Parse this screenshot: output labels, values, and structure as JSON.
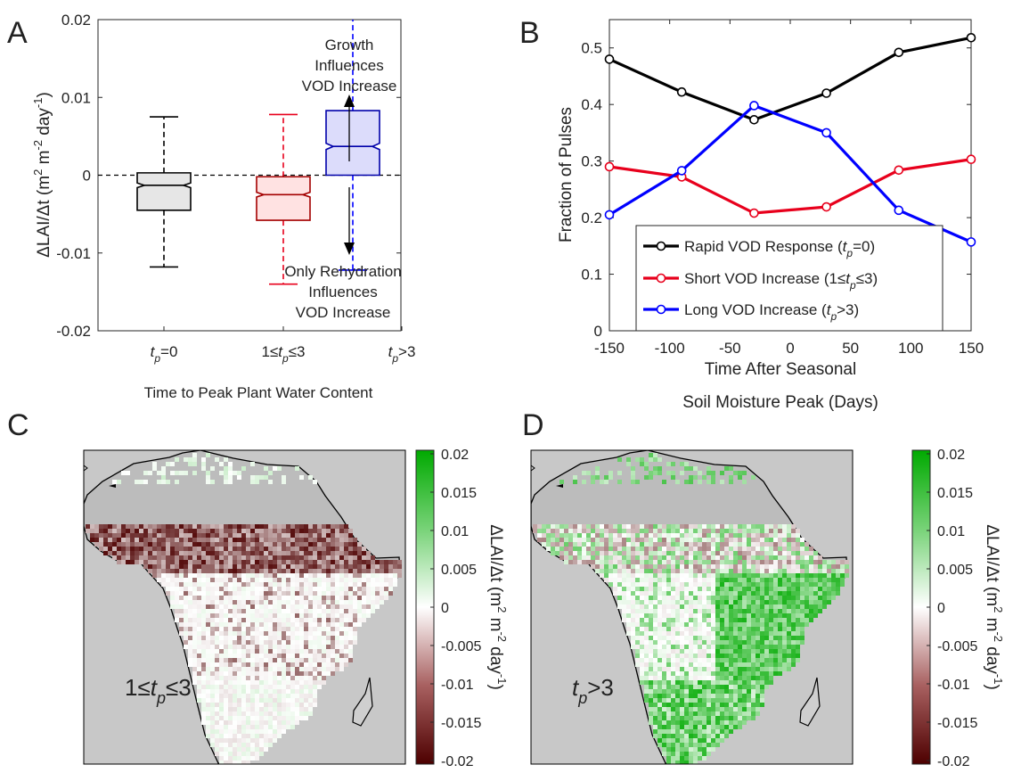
{
  "panels": {
    "A": {
      "letter": "A"
    },
    "B": {
      "letter": "B"
    },
    "C": {
      "letter": "C"
    },
    "D": {
      "letter": "D"
    }
  },
  "colors": {
    "black": "#000000",
    "red": "#e8001c",
    "blue": "#0000ff",
    "box_gray_fill": "#e6e6e6",
    "box_red_fill": "#ffe2e2",
    "box_red_edge": "#a40000",
    "box_blue_fill": "#dcdcfb",
    "box_blue_edge": "#0000aa",
    "ocean": "#c8c8c8",
    "cmap_low": "#4d0000",
    "cmap_mid": "#ffffff",
    "cmap_high": "#00aa00"
  },
  "chart_data": [
    {
      "panel": "A",
      "type": "box",
      "categories_text": {
        "c1_a": "t",
        "c1_sub": "p",
        "c1_b": "=0",
        "c2_a": "1≤",
        "c2_t": "t",
        "c2_sub": "p",
        "c2_b": "≤3",
        "c3_a": "t",
        "c3_sub": "p",
        "c3_b": ">3"
      },
      "xlabel": "Time to Peak Plant Water Content",
      "ylabel": {
        "main": "ΔLAI/Δt (m",
        "sup1": "2",
        "mid1": " m",
        "sup2": "-2",
        "mid2": " day",
        "sup3": "-1",
        "end": ")"
      },
      "ylim": [
        -0.02,
        0.02
      ],
      "yticks": [
        -0.02,
        -0.01,
        0,
        0.01,
        0.02
      ],
      "ytick_labels": [
        "-0.02",
        "-0.01",
        "0",
        "0.01",
        "0.02"
      ],
      "reference_line": 0,
      "boxes": [
        {
          "whisker_low": -0.0118,
          "q1": -0.0045,
          "median": -0.0013,
          "q3": 0.0003,
          "whisker_high": 0.0075,
          "notch": 0.0003
        },
        {
          "whisker_low": -0.014,
          "q1": -0.0058,
          "median": -0.0025,
          "q3": -0.0002,
          "whisker_high": 0.0078,
          "notch": 0.0003
        },
        {
          "whisker_low": -0.0122,
          "q1": 0.0,
          "median": 0.0037,
          "q3": 0.0083,
          "whisker_high": 0.02,
          "notch": 0.0004
        }
      ],
      "annotation_up": [
        "Growth",
        "Influences",
        "VOD Increase"
      ],
      "annotation_down": [
        "Only Rehydration",
        "Influences",
        "VOD Increase"
      ]
    },
    {
      "panel": "B",
      "type": "line",
      "x": [
        -150,
        -90,
        -30,
        30,
        90,
        150
      ],
      "xlabel": [
        "Time After Seasonal",
        "Soil Moisture Peak (Days)"
      ],
      "ylabel": "Fraction of Pulses",
      "xlim": [
        -150,
        150
      ],
      "ylim": [
        0,
        0.55
      ],
      "xticks": [
        -150,
        -100,
        -50,
        0,
        50,
        100,
        150
      ],
      "xtick_labels": [
        "-150",
        "-100",
        "-50",
        "0",
        "50",
        "100",
        "150"
      ],
      "yticks": [
        0,
        0.1,
        0.2,
        0.3,
        0.4,
        0.5
      ],
      "ytick_labels": [
        "0",
        "0.1",
        "0.2",
        "0.3",
        "0.4",
        "0.5"
      ],
      "series": [
        {
          "values": [
            0.48,
            0.422,
            0.373,
            0.42,
            0.492,
            0.518
          ],
          "legend": {
            "pre": "Rapid VOD Response (",
            "t": "t",
            "sub": "p",
            "post": "=0)"
          }
        },
        {
          "values": [
            0.29,
            0.272,
            0.208,
            0.219,
            0.284,
            0.303
          ],
          "legend": {
            "pre": "Short VOD Increase (1≤",
            "t": "t",
            "sub": "p",
            "post": "≤3)"
          }
        },
        {
          "values": [
            0.205,
            0.283,
            0.398,
            0.35,
            0.213,
            0.157
          ],
          "legend": {
            "pre": "Long VOD Increase (",
            "t": "t",
            "sub": "p",
            "post": ">3)"
          }
        }
      ],
      "legend_position": "lower-center"
    },
    {
      "panel": "C",
      "type": "heatmap",
      "map_label": {
        "pre": "1≤",
        "t": "t",
        "sub": "p",
        "post": "≤3"
      },
      "clim": [
        -0.02,
        0.02
      ],
      "colorbar_ticks": [
        "0.02",
        "0.015",
        "0.01",
        "0.005",
        "0",
        "-0.005",
        "-0.01",
        "-0.015",
        "-0.02"
      ],
      "colorbar_label": {
        "main": "ΔLAI/Δt (m",
        "sup1": "2",
        "mid1": " m",
        "sup2": "-2",
        "mid2": " day",
        "sup3": "-1",
        "end": ")"
      }
    },
    {
      "panel": "D",
      "type": "heatmap",
      "map_label": {
        "pre": "",
        "t": "t",
        "sub": "p",
        "post": ">3"
      },
      "clim": [
        -0.02,
        0.02
      ],
      "colorbar_ticks": [
        "0.02",
        "0.015",
        "0.01",
        "0.005",
        "0",
        "-0.005",
        "-0.01",
        "-0.015",
        "-0.02"
      ],
      "colorbar_label": {
        "main": "ΔLAI/Δt (m",
        "sup1": "2",
        "mid1": " m",
        "sup2": "-2",
        "mid2": " day",
        "sup3": "-1",
        "end": ")"
      }
    }
  ]
}
